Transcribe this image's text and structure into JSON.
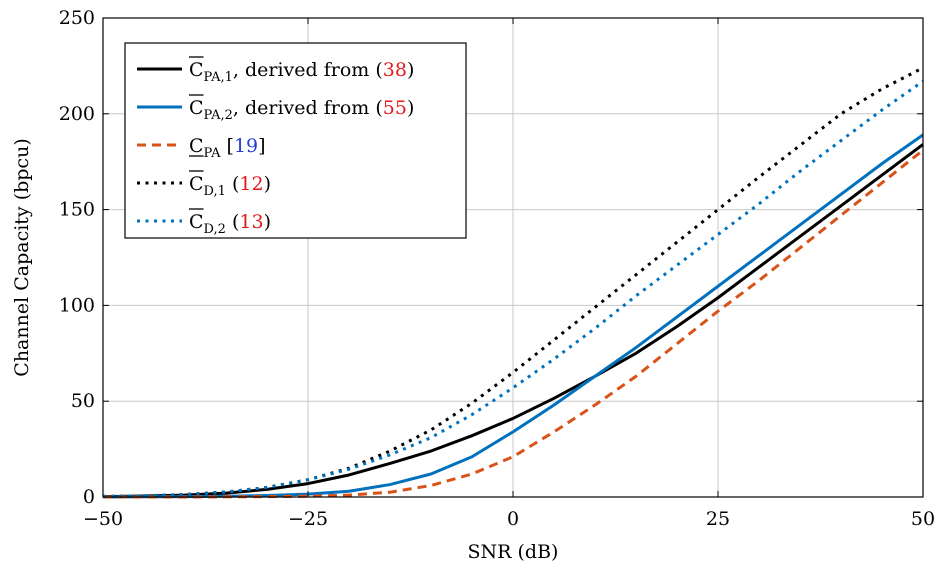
{
  "chart_data": {
    "type": "line",
    "title": "",
    "xlabel": "SNR (dB)",
    "ylabel": "Channel Capacity (bpcu)",
    "xlim": [
      -50,
      50
    ],
    "ylim": [
      0,
      250
    ],
    "xticks": [
      -50,
      -25,
      0,
      25,
      50
    ],
    "xtick_labels": [
      "−50",
      "−25",
      "0",
      "25",
      "50"
    ],
    "yticks": [
      0,
      50,
      100,
      150,
      200,
      250
    ],
    "ytick_labels": [
      "0",
      "50",
      "100",
      "150",
      "200",
      "250"
    ],
    "grid": true,
    "legend_position": "top-left",
    "series": [
      {
        "legend_main": "C",
        "legend_sub": "PA,1",
        "legend_text": ", derived from (",
        "legend_ref": "38",
        "legend_close": ")",
        "color": "#000000",
        "style": "solid",
        "x": [
          -50,
          -45,
          -40,
          -35,
          -30,
          -25,
          -20,
          -15,
          -10,
          -5,
          0,
          5,
          10,
          15,
          20,
          25,
          30,
          35,
          40,
          45,
          50
        ],
        "y": [
          0.2,
          0.5,
          1.0,
          2.0,
          4.0,
          7.0,
          11.5,
          17.5,
          24.0,
          32.0,
          41.0,
          51.5,
          63.0,
          75.0,
          89.0,
          104.0,
          120.0,
          136.0,
          152.0,
          168.0,
          184.0
        ]
      },
      {
        "legend_main": "C",
        "legend_sub": "PA,2",
        "legend_text": ", derived from (",
        "legend_ref": "55",
        "legend_close": ")",
        "color": "#0072bd",
        "style": "solid",
        "x": [
          -50,
          -45,
          -40,
          -35,
          -30,
          -25,
          -20,
          -15,
          -10,
          -5,
          0,
          5,
          10,
          15,
          20,
          25,
          30,
          35,
          40,
          45,
          50
        ],
        "y": [
          0.0,
          0.1,
          0.2,
          0.4,
          0.8,
          1.5,
          3.0,
          6.5,
          12.0,
          21.0,
          34.0,
          48.0,
          63.0,
          78.0,
          94.0,
          110.0,
          126.0,
          142.0,
          158.0,
          174.0,
          189.0
        ]
      },
      {
        "legend_main": "C",
        "legend_sub": "PA",
        "legend_text": " [",
        "legend_ref": "19",
        "legend_close": "]",
        "color": "#d95319",
        "style": "dashed",
        "x": [
          -50,
          -45,
          -40,
          -35,
          -30,
          -25,
          -20,
          -15,
          -10,
          -5,
          0,
          5,
          10,
          15,
          20,
          25,
          30,
          35,
          40,
          45,
          50
        ],
        "y": [
          0.0,
          0.0,
          0.0,
          0.1,
          0.2,
          0.4,
          1.0,
          2.5,
          6.0,
          12.0,
          21.0,
          34.0,
          48.0,
          63.0,
          80.0,
          97.0,
          113.0,
          130.0,
          147.0,
          164.0,
          181.0
        ]
      },
      {
        "legend_main": "C",
        "legend_sub": "D,1",
        "legend_text": " (",
        "legend_ref": "12",
        "legend_close": ")",
        "color": "#000000",
        "style": "dotted",
        "x": [
          -50,
          -45,
          -40,
          -35,
          -30,
          -25,
          -20,
          -15,
          -10,
          -5,
          0,
          5,
          10,
          15,
          20,
          25,
          30,
          35,
          40,
          45,
          50
        ],
        "y": [
          0.3,
          0.6,
          1.3,
          2.6,
          5.0,
          9.0,
          15.0,
          24.0,
          35.0,
          49.0,
          65.0,
          82.0,
          99.0,
          116.0,
          133.0,
          150.0,
          167.0,
          183.5,
          200.0,
          213.0,
          224.0
        ]
      },
      {
        "legend_main": "C",
        "legend_sub": "D,2",
        "legend_text": " (",
        "legend_ref": "13",
        "legend_close": ")",
        "color": "#0072bd",
        "style": "dotted",
        "x": [
          -50,
          -45,
          -40,
          -35,
          -30,
          -25,
          -20,
          -15,
          -10,
          -5,
          0,
          5,
          10,
          15,
          20,
          25,
          30,
          35,
          40,
          45,
          50
        ],
        "y": [
          0.3,
          0.6,
          1.3,
          2.6,
          5.0,
          9.0,
          14.5,
          22.0,
          31.0,
          43.0,
          57.0,
          72.0,
          88.0,
          105.0,
          121.0,
          137.0,
          153.0,
          170.0,
          186.0,
          202.0,
          217.0
        ]
      }
    ]
  }
}
